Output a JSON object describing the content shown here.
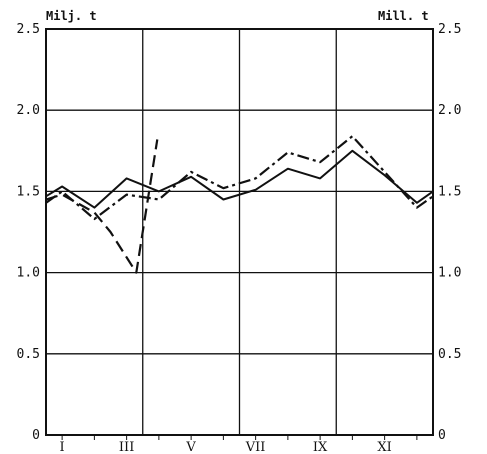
{
  "chart_data": {
    "type": "line",
    "title": "",
    "ylabel_left": "Milj. t",
    "ylabel_right": "Mill. t",
    "ylim": [
      0,
      2.5
    ],
    "y_ticks": [
      "0",
      "0.5",
      "1.0",
      "1.5",
      "2.0",
      "2.5"
    ],
    "x_ticks": [
      "I",
      "III",
      "V",
      "VII",
      "IX",
      "XI"
    ],
    "x_tick_months": [
      1,
      3,
      5,
      7,
      9,
      11
    ],
    "xlim": [
      0.5,
      12.5
    ],
    "grid": true,
    "series": [
      {
        "style": "solid",
        "x": [
          0.5,
          1,
          2,
          3,
          4,
          5,
          6,
          7,
          8,
          9,
          10,
          11,
          12,
          12.5
        ],
        "values": [
          1.47,
          1.53,
          1.4,
          1.58,
          1.5,
          1.59,
          1.45,
          1.51,
          1.64,
          1.58,
          1.75,
          1.6,
          1.43,
          1.5
        ]
      },
      {
        "style": "dash-dot",
        "x": [
          0.5,
          1,
          2,
          3,
          4,
          5,
          6,
          7,
          8,
          9,
          10,
          11,
          12,
          12.5
        ],
        "values": [
          1.43,
          1.5,
          1.33,
          1.48,
          1.45,
          1.62,
          1.52,
          1.58,
          1.74,
          1.68,
          1.84,
          1.62,
          1.4,
          1.47
        ]
      },
      {
        "style": "dashed",
        "x": [
          0.5,
          1,
          2,
          2.5,
          3.3,
          3.95
        ],
        "values": [
          1.45,
          1.48,
          1.37,
          1.25,
          1.0,
          1.82
        ]
      }
    ]
  }
}
